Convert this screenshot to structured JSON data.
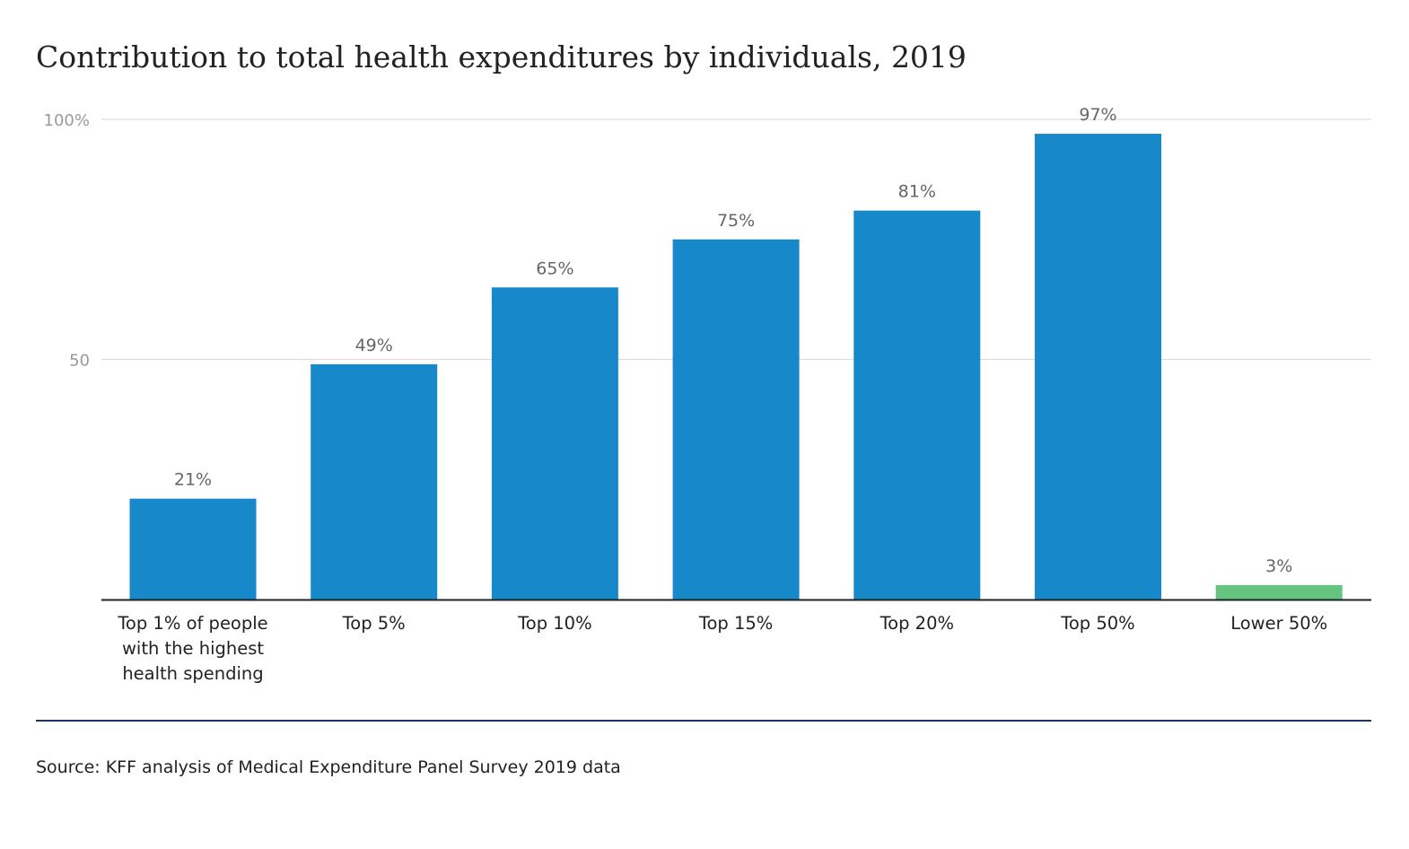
{
  "chart_data": {
    "type": "bar",
    "title": "Contribution to total health expenditures by individuals, 2019",
    "xlabel": "",
    "ylabel": "",
    "ylim": [
      0,
      100
    ],
    "y_ticks": [
      {
        "value": 50,
        "label": "50"
      },
      {
        "value": 100,
        "label": "100%"
      }
    ],
    "grid": true,
    "categories": [
      "Top 1% of people with the highest health spending",
      "Top 5%",
      "Top 10%",
      "Top 15%",
      "Top 20%",
      "Top 50%",
      "Lower 50%"
    ],
    "category_lines": [
      [
        "Top 1% of people",
        "with the highest",
        "health spending"
      ],
      [
        "Top 5%"
      ],
      [
        "Top 10%"
      ],
      [
        "Top 15%"
      ],
      [
        "Top 20%"
      ],
      [
        "Top 50%"
      ],
      [
        "Lower 50%"
      ]
    ],
    "values": [
      21,
      49,
      65,
      75,
      81,
      97,
      3
    ],
    "data_labels": [
      "21%",
      "49%",
      "65%",
      "75%",
      "81%",
      "97%",
      "3%"
    ],
    "bar_colors": [
      "#1789ca",
      "#1789ca",
      "#1789ca",
      "#1789ca",
      "#1789ca",
      "#1789ca",
      "#65c47f"
    ]
  },
  "colors": {
    "primary_bar": "#1789ca",
    "highlight_bar": "#65c47f",
    "gridline": "#dddddd",
    "axis": "#222222",
    "value_label": "#666666",
    "y_tick_label": "#9a9a9a",
    "footer_rule": "#1c3663"
  },
  "source": "Source: KFF analysis of Medical Expenditure Panel Survey 2019 data"
}
